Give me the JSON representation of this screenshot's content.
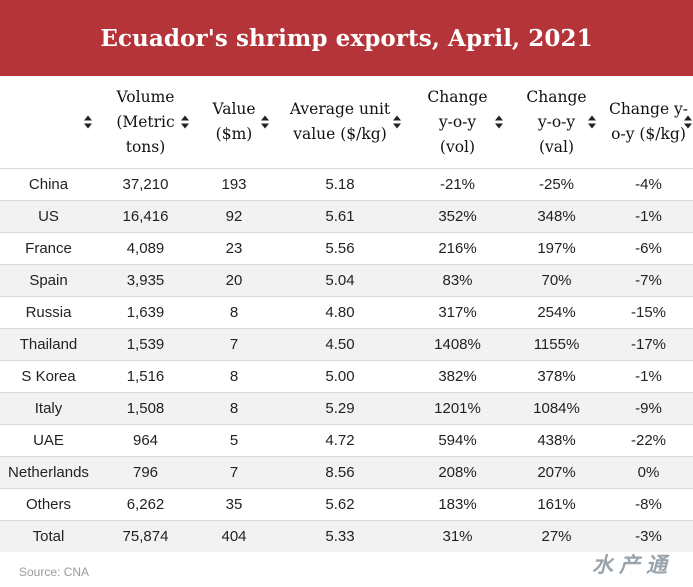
{
  "title": "Ecuador's shrimp exports, April, 2021",
  "columns": [
    {
      "lines": [
        "",
        ""
      ]
    },
    {
      "lines": [
        "Volume",
        "(Metric",
        "tons)"
      ]
    },
    {
      "lines": [
        "Value",
        "($m)"
      ]
    },
    {
      "lines": [
        "Average unit",
        "value ($/kg)"
      ]
    },
    {
      "lines": [
        "Change",
        "y-o-y",
        "(vol)"
      ]
    },
    {
      "lines": [
        "Change",
        "y-o-y",
        "(val)"
      ]
    },
    {
      "lines": [
        "Change y-",
        "o-y ($/kg)"
      ]
    }
  ],
  "rows": [
    [
      "China",
      "37,210",
      "193",
      "5.18",
      "-21%",
      "-25%",
      "-4%"
    ],
    [
      "US",
      "16,416",
      "92",
      "5.61",
      "352%",
      "348%",
      "-1%"
    ],
    [
      "France",
      "4,089",
      "23",
      "5.56",
      "216%",
      "197%",
      "-6%"
    ],
    [
      "Spain",
      "3,935",
      "20",
      "5.04",
      "83%",
      "70%",
      "-7%"
    ],
    [
      "Russia",
      "1,639",
      "8",
      "4.80",
      "317%",
      "254%",
      "-15%"
    ],
    [
      "Thailand",
      "1,539",
      "7",
      "4.50",
      "1408%",
      "1155%",
      "-17%"
    ],
    [
      "S Korea",
      "1,516",
      "8",
      "5.00",
      "382%",
      "378%",
      "-1%"
    ],
    [
      "Italy",
      "1,508",
      "8",
      "5.29",
      "1201%",
      "1084%",
      "-9%"
    ],
    [
      "UAE",
      "964",
      "5",
      "4.72",
      "594%",
      "438%",
      "-22%"
    ],
    [
      "Netherlands",
      "796",
      "7",
      "8.56",
      "208%",
      "207%",
      "0%"
    ],
    [
      "Others",
      "6,262",
      "35",
      "5.62",
      "183%",
      "161%",
      "-8%"
    ],
    [
      "Total",
      "75,874",
      "404",
      "5.33",
      "31%",
      "27%",
      "-3%"
    ]
  ],
  "source": "Source: CNA",
  "watermark": "水产通",
  "colors": {
    "header_bg": "#b5343a",
    "stripe": "#f2f2f2"
  }
}
